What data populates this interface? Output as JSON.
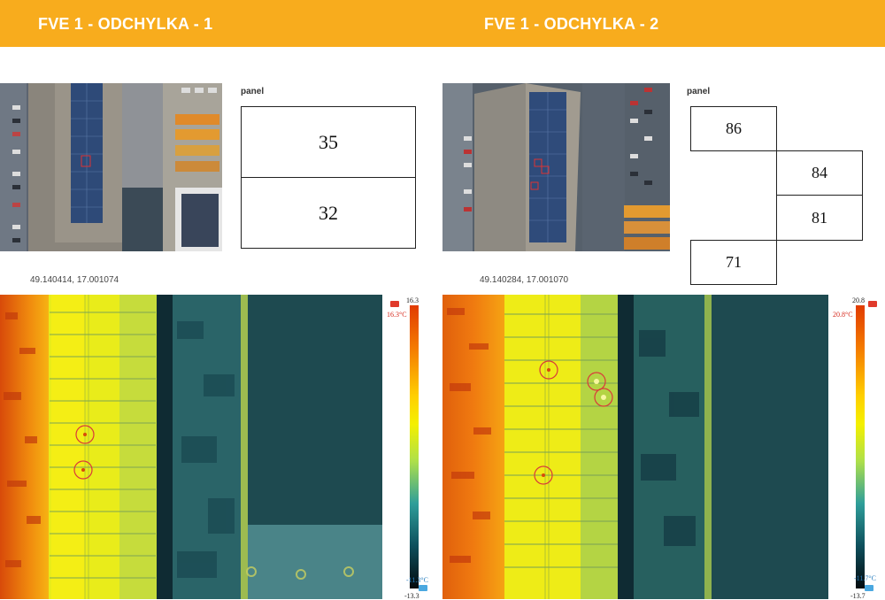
{
  "header": {
    "color": "#f8ac1d"
  },
  "reports": [
    {
      "title": "FVE 1 - ODCHYLKA - 1",
      "panel_label": "panel",
      "panel_ids": [
        "35",
        "32"
      ],
      "coordinates": "49.140414, 17.001074",
      "scale": {
        "max": "16.3",
        "max_marker": "16.3°C",
        "min_marker": "-11.3°C",
        "min": "-13.3"
      }
    },
    {
      "title": "FVE 1 - ODCHYLKA - 2",
      "panel_label": "panel",
      "panel_ids": [
        "86",
        "84",
        "81",
        "71"
      ],
      "coordinates": "49.140284, 17.001070",
      "scale": {
        "max": "20.8",
        "max_marker": "20.8°C",
        "min_marker": "-11.7°C",
        "min": "-13.7"
      }
    }
  ]
}
